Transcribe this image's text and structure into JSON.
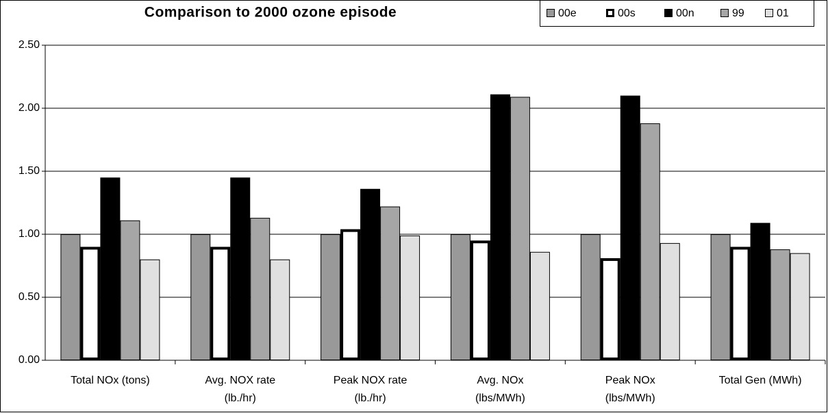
{
  "chart_data": {
    "type": "bar",
    "title": "Comparison to 2000 ozone episode",
    "categories": [
      [
        "Total NOx (tons)"
      ],
      [
        "Avg. NOX rate",
        "(lb./hr)"
      ],
      [
        "Peak NOX rate",
        "(lb./hr)"
      ],
      [
        "Avg. NOx",
        "(lbs/MWh)"
      ],
      [
        "Peak NOx",
        "(lbs/MWh)"
      ],
      [
        "Total Gen (MWh)"
      ]
    ],
    "series": [
      {
        "name": "00e",
        "color": "#999999",
        "values": [
          1.0,
          1.0,
          1.0,
          1.0,
          1.0,
          1.0
        ]
      },
      {
        "name": "00s",
        "color": "#ffffff",
        "edge_width": 4,
        "values": [
          0.9,
          0.9,
          1.04,
          0.95,
          0.81,
          0.9
        ]
      },
      {
        "name": "00n",
        "color": "#000000",
        "values": [
          1.45,
          1.45,
          1.36,
          2.11,
          2.1,
          1.09
        ]
      },
      {
        "name": "99",
        "color": "#a6a6a6",
        "values": [
          1.11,
          1.13,
          1.22,
          2.09,
          1.88,
          0.88
        ]
      },
      {
        "name": "01",
        "color": "#e0e0e0",
        "values": [
          0.8,
          0.8,
          0.99,
          0.86,
          0.93,
          0.85
        ]
      }
    ],
    "ylim": [
      0,
      2.5
    ],
    "yticks": [
      {
        "value": 0,
        "label": "0.00"
      },
      {
        "value": 0.5,
        "label": "0.50"
      },
      {
        "value": 1,
        "label": "1.00"
      },
      {
        "value": 1.5,
        "label": "1.50"
      },
      {
        "value": 2,
        "label": "2.00"
      },
      {
        "value": 2.5,
        "label": "2.50"
      }
    ],
    "grid": true,
    "legend": "top-right"
  }
}
